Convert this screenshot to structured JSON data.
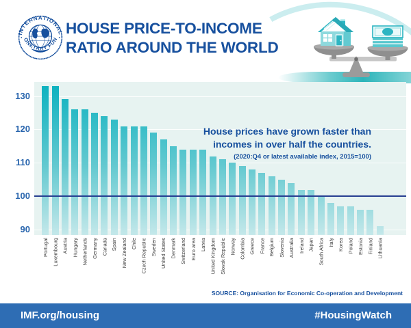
{
  "header": {
    "logo": {
      "top_text": "INTERNATIONAL",
      "bottom_text": "MONETARY FUND"
    },
    "title_line1": "HOUSE PRICE-TO-INCOME",
    "title_line2": "RATIO AROUND THE WORLD"
  },
  "chart_data": {
    "type": "bar",
    "title": "House prices have grown faster than incomes in over half the countries.",
    "annotation_line1": "House prices have grown faster than",
    "annotation_line2": "incomes in over half the countries.",
    "subtitle": "(2020:Q4 or latest available index, 2015=100)",
    "categories": [
      "Portugal",
      "Luxembourg",
      "Austria",
      "Hungary",
      "Netherlands",
      "Germany",
      "Canada",
      "Spain",
      "New Zealand",
      "Chile",
      "Czech Republic",
      "Sweden",
      "United States",
      "Denmark",
      "Switzerland",
      "Euro area",
      "Latvia",
      "United Kingdom",
      "Slovak Republic",
      "Norway",
      "Colombia",
      "Greece",
      "France",
      "Belgium",
      "Slovenia",
      "Australia",
      "Ireland",
      "Japan",
      "South Africa",
      "Italy",
      "Korea",
      "Poland",
      "Estonia",
      "Finland",
      "Lithuania"
    ],
    "values": [
      133,
      133,
      129,
      126,
      126,
      125,
      124,
      123,
      121,
      121,
      121,
      119,
      117,
      115,
      114,
      114,
      114,
      112,
      111,
      110,
      109,
      108,
      107,
      106,
      105,
      104,
      102,
      102,
      100,
      98,
      97,
      97,
      96,
      96,
      91
    ],
    "yticks": [
      90,
      100,
      110,
      120,
      130
    ],
    "ylim": [
      88.4,
      134.2
    ],
    "benchmark": 100,
    "grid": true,
    "legend": "none",
    "xlabel": "",
    "ylabel": ""
  },
  "source": "SOURCE: Organisation for Economic Co-operation and Development",
  "footer": {
    "left": "IMF.org/housing",
    "right": "#HousingWatch"
  },
  "colors": {
    "title_blue": "#17509e",
    "axis_blue": "#2a66ae",
    "bar_top": "#0ab1bf",
    "bar_bottom": "#c4e8ea",
    "plot_bg": "#e7f3f1",
    "benchmark_line": "#263d91",
    "footer_bg": "#2e6db4",
    "teal_accent": "#2cb5ba",
    "label_gray": "#3d3d3d"
  }
}
